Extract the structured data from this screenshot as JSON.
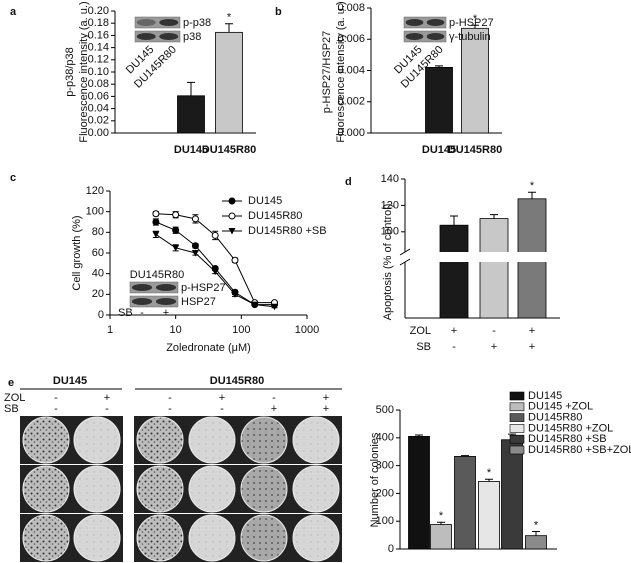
{
  "chart_data": [
    {
      "label": "a",
      "type": "bar",
      "ylabel": [
        "p-p38/p38",
        "Fluorescence intensity (a. u.)"
      ],
      "categories": [
        "DU145",
        "DU145R80"
      ],
      "values": [
        0.061,
        0.165
      ],
      "errors": [
        0.022,
        0.014
      ],
      "colors": [
        "#1a1a1a",
        "#c8c8c8"
      ],
      "significance_marks": [
        null,
        "*"
      ],
      "ylim": [
        0,
        0.2
      ],
      "yticks": [
        {
          "value": 0,
          "label": "0.00"
        },
        {
          "value": 0.02,
          "label": "0.02"
        },
        {
          "value": 0.04,
          "label": "0.04"
        },
        {
          "value": 0.06,
          "label": "0.06"
        },
        {
          "value": 0.08,
          "label": "0.08"
        },
        {
          "value": 0.1,
          "label": "0.10"
        },
        {
          "value": 0.12,
          "label": "0.12"
        },
        {
          "value": 0.14,
          "label": "0.14"
        },
        {
          "value": 0.16,
          "label": "0.16"
        },
        {
          "value": 0.18,
          "label": "0.18"
        },
        {
          "value": 0.2,
          "label": "0.20"
        }
      ],
      "blot": {
        "rows": [
          "p-p38",
          "p38"
        ],
        "lanes": [
          "DU145",
          "DU145R80"
        ]
      }
    },
    {
      "label": "b",
      "type": "bar",
      "ylabel": [
        "p-HSP27/HSP27",
        "Fluorescence intensity (a. u.)"
      ],
      "categories": [
        "DU145",
        "DU145R80"
      ],
      "values": [
        0.0042,
        0.0067
      ],
      "errors": [
        0.0001,
        0.0002
      ],
      "colors": [
        "#1a1a1a",
        "#c8c8c8"
      ],
      "significance_marks": [
        null,
        "*"
      ],
      "ylim": [
        0,
        0.008
      ],
      "yticks": [
        {
          "value": 0,
          "label": "0.000"
        },
        {
          "value": 0.002,
          "label": "0.002"
        },
        {
          "value": 0.004,
          "label": "0.004"
        },
        {
          "value": 0.006,
          "label": "0.006"
        },
        {
          "value": 0.008,
          "label": "0.008"
        }
      ],
      "blot": {
        "rows": [
          "p-HSP27",
          "γ-tubulin"
        ],
        "lanes": [
          "DU145",
          "DU145R80"
        ]
      }
    },
    {
      "label": "c",
      "type": "line",
      "ylabel": "Cell growth (%)",
      "xlabel": "Zoledronate (μM)",
      "log_x": true,
      "x": [
        5,
        10,
        20,
        40,
        80,
        160,
        320
      ],
      "series": [
        {
          "name": "DU145",
          "marker": "filled-circle",
          "values": [
            90,
            82,
            67,
            45,
            22,
            10,
            10
          ],
          "errors": [
            3,
            3,
            2,
            2,
            2,
            1,
            1
          ]
        },
        {
          "name": "DU145R80",
          "marker": "open-circle",
          "values": [
            98,
            97,
            93,
            77,
            53,
            12,
            12
          ],
          "errors": [
            2,
            3,
            4,
            4,
            2,
            1,
            1
          ]
        },
        {
          "name": "DU145R80 +SB",
          "marker": "filled-triangle",
          "values": [
            78,
            65,
            60,
            42,
            20,
            10,
            8
          ],
          "errors": [
            3,
            3,
            2,
            2,
            2,
            1,
            1
          ]
        }
      ],
      "xlim": [
        1,
        1000
      ],
      "xticks": [
        1,
        10,
        100,
        1000
      ],
      "ylim": [
        0,
        120
      ],
      "yticks": [
        0,
        20,
        40,
        60,
        80,
        100,
        120
      ],
      "blot": {
        "title": "DU145R80",
        "rows": [
          "p-HSP27",
          "HSP27"
        ],
        "condition": "SB",
        "signs": [
          "-",
          "+"
        ]
      }
    },
    {
      "label": "d",
      "type": "bar",
      "ylabel": "Apoptosis (% of control)",
      "axis_break": true,
      "values": [
        105,
        110,
        125
      ],
      "errors": [
        7,
        3,
        5
      ],
      "colors": [
        "#1a1a1a",
        "#c8c8c8",
        "#7a7a7a"
      ],
      "significance_marks": [
        null,
        null,
        "*"
      ],
      "conditions": [
        {
          "name": "ZOL",
          "signs": [
            "+",
            "-",
            "+"
          ]
        },
        {
          "name": "SB",
          "signs": [
            "-",
            "+",
            "+"
          ]
        }
      ],
      "ylim": [
        90,
        140
      ],
      "yticks": [
        100,
        120,
        140
      ]
    },
    {
      "label": "e",
      "type": "bar",
      "ylabel": "Number of colonies",
      "categories": [
        "DU145",
        "DU145 +ZOL",
        "DU145R80",
        "DU145R80 +ZOL",
        "DU145R80 +SB",
        "DU145R80 +SB+ZOL"
      ],
      "values": [
        405,
        88,
        333,
        243,
        393,
        48
      ],
      "errors": [
        5,
        8,
        3,
        8,
        20,
        15
      ],
      "colors": [
        "#111111",
        "#bdbdbd",
        "#5a5a5a",
        "#e6e6e6",
        "#3a3a3a",
        "#8a8a8a"
      ],
      "significance_marks": [
        null,
        "*",
        null,
        "*",
        null,
        "*"
      ],
      "ylim": [
        0,
        500
      ],
      "yticks": [
        0,
        100,
        200,
        300,
        400,
        500
      ]
    }
  ],
  "plates": {
    "groups": [
      "DU145",
      "DU145R80"
    ],
    "rows": [
      {
        "name": "ZOL",
        "signs": [
          "-",
          "+",
          "-",
          "+",
          "-",
          "+"
        ]
      },
      {
        "name": "SB",
        "signs": [
          "-",
          "-",
          "-",
          "-",
          "+",
          "+"
        ]
      }
    ]
  }
}
